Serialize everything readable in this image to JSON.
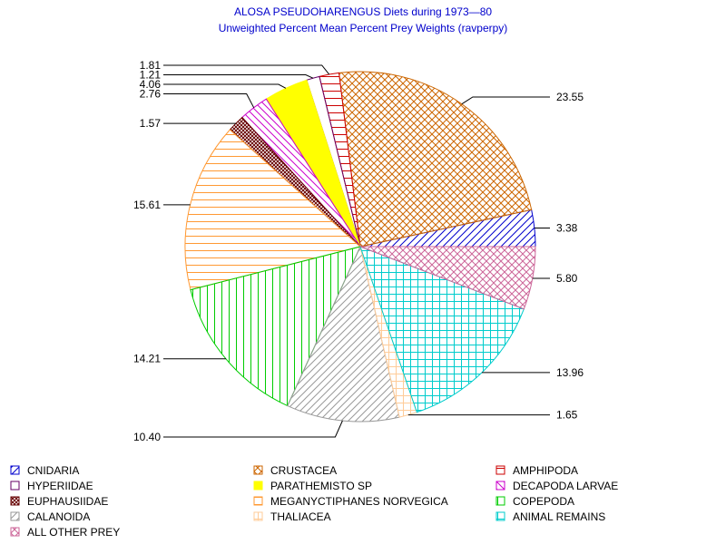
{
  "chart_data": {
    "type": "pie",
    "title": "ALOSA PSEUDOHARENGUS Diets during 1973—80",
    "subtitle": "Unweighted Percent Mean Percent Prey  Weights (ravperpy)",
    "start_angle_deg": 0,
    "direction": "counterclockwise",
    "slices": [
      {
        "label": "CNIDARIA",
        "value": 3.38,
        "value_label": "3.38",
        "color": "#0000cc",
        "pattern": "diag-up"
      },
      {
        "label": "CRUSTACEA",
        "value": 23.55,
        "value_label": "23.55",
        "color": "#cc6600",
        "pattern": "crosshatch"
      },
      {
        "label": "AMPHIPODA",
        "value": 1.81,
        "value_label": "1.81",
        "color": "#cc0000",
        "pattern": "horizontal"
      },
      {
        "label": "HYPERIIDAE",
        "value": 1.21,
        "value_label": "1.21",
        "color": "#660066",
        "pattern": "none"
      },
      {
        "label": "PARATHEMISTO SP",
        "value": 4.06,
        "value_label": "4.06",
        "color": "#ffff00",
        "pattern": "solid"
      },
      {
        "label": "DECAPODA LARVAE",
        "value": 2.76,
        "value_label": "2.76",
        "color": "#cc00cc",
        "pattern": "diag-down"
      },
      {
        "label": "EUPHAUSIIDAE",
        "value": 1.57,
        "value_label": "1.57",
        "color": "#660000",
        "pattern": "dense-cross"
      },
      {
        "label": "MEGANYCTIPHANES NORVEGICA",
        "value": 15.61,
        "value_label": "15.61",
        "color": "#ff9933",
        "pattern": "horizontal"
      },
      {
        "label": "COPEPODA",
        "value": 14.21,
        "value_label": "14.21",
        "color": "#00cc00",
        "pattern": "vertical"
      },
      {
        "label": "CALANOIDA",
        "value": 10.4,
        "value_label": "10.40",
        "color": "#999999",
        "pattern": "diag-up"
      },
      {
        "label": "THALIACEA",
        "value": 1.65,
        "value_label": "1.65",
        "color": "#ffcc99",
        "pattern": "grid"
      },
      {
        "label": "ANIMAL REMAINS",
        "value": 13.96,
        "value_label": "13.96",
        "color": "#00cccc",
        "pattern": "grid"
      },
      {
        "label": "ALL OTHER PREY",
        "value": 5.8,
        "value_label": "5.80",
        "color": "#cc6699",
        "pattern": "crosshatch"
      }
    ],
    "legend": {
      "position": "bottom",
      "columns": 3,
      "order": [
        "CNIDARIA",
        "CRUSTACEA",
        "AMPHIPODA",
        "HYPERIIDAE",
        "PARATHEMISTO SP",
        "DECAPODA LARVAE",
        "EUPHAUSIIDAE",
        "MEGANYCTIPHANES NORVEGICA",
        "COPEPODA",
        "CALANOIDA",
        "THALIACEA",
        "ANIMAL REMAINS",
        "ALL OTHER PREY"
      ]
    }
  }
}
